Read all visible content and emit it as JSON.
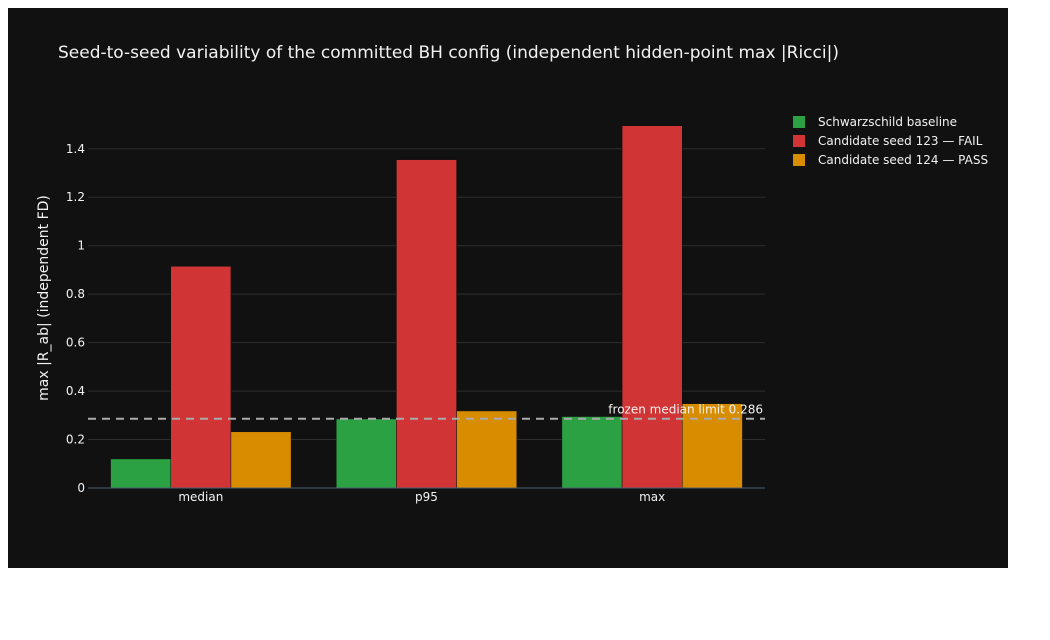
{
  "chart_data": {
    "type": "bar",
    "title": "Seed-to-seed variability of the committed BH config (independent hidden-point max |Ricci|)",
    "xlabel": "",
    "ylabel": "max |R_ab| (independent FD)",
    "categories": [
      "median",
      "p95",
      "max"
    ],
    "series": [
      {
        "name": "Schwarzschild baseline",
        "color": "#2ca143",
        "values": [
          0.12,
          0.285,
          0.295
        ]
      },
      {
        "name": "Candidate seed 123 — FAIL",
        "color": "#d03434",
        "values": [
          0.915,
          1.355,
          1.495
        ]
      },
      {
        "name": "Candidate seed 124 — PASS",
        "color": "#d88c00",
        "values": [
          0.232,
          0.318,
          0.348
        ]
      }
    ],
    "ylim": [
      0,
      1.56
    ],
    "yticks": [
      0,
      0.2,
      0.4,
      0.6,
      0.8,
      1,
      1.2,
      1.4
    ],
    "ytick_labels": [
      "0",
      "0.2",
      "0.4",
      "0.6",
      "0.8",
      "1",
      "1.2",
      "1.4"
    ],
    "grid": true,
    "legend_position": "top-right",
    "reference_line": {
      "value": 0.286,
      "label": "frozen median limit 0.286",
      "color": "#aaaaaa"
    },
    "background": "#111111",
    "text_color": "#f2f2f2",
    "grid_color": "#2e2e2e"
  }
}
